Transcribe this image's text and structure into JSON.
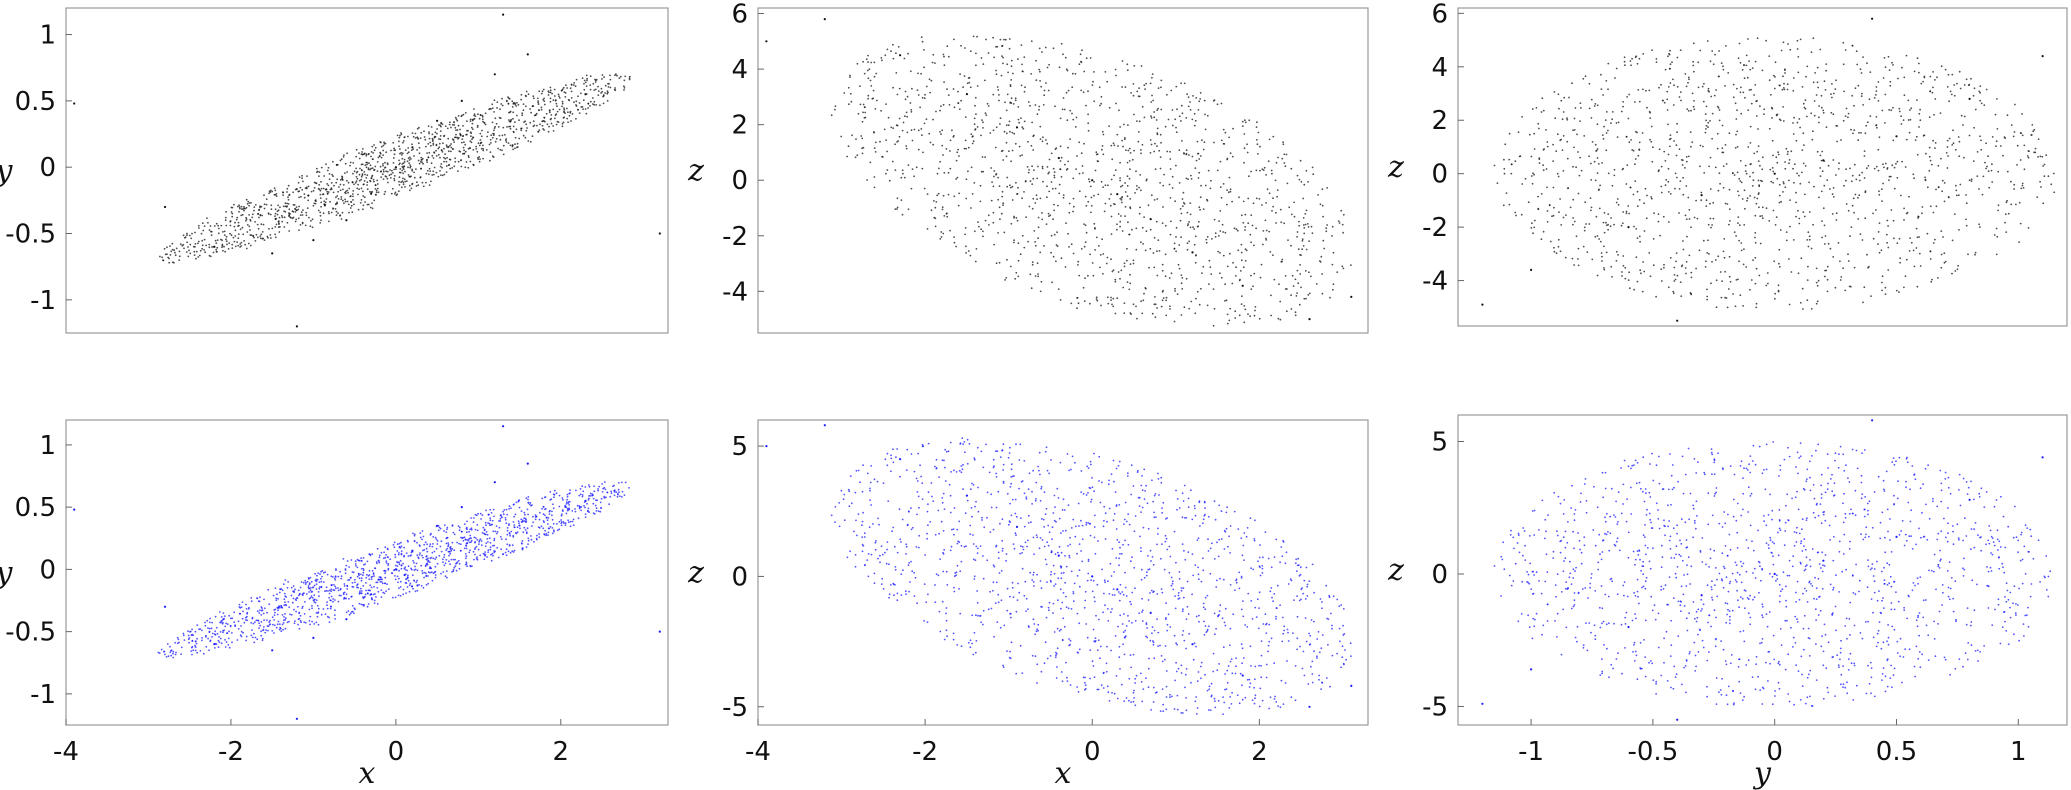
{
  "colors": {
    "top_row_points": "#111111",
    "bottom_row_points": "#1a1aff"
  },
  "chart_data": [
    {
      "type": "scatter",
      "row": 1,
      "col": 1,
      "xlabel": "",
      "ylabel": "y",
      "xlim": [
        -4.0,
        3.3
      ],
      "ylim": [
        -1.25,
        1.2
      ],
      "xticks": [],
      "yticks": [
        -1,
        -0.5,
        0,
        0.5,
        1
      ],
      "ytick_labels": [
        "-1",
        "-0.5",
        "0",
        "0.5",
        "1"
      ],
      "marker_color": "#111111",
      "series": [
        {
          "x_coord": "x",
          "y_coord": "y",
          "x": [
            0,
            0.2,
            -0.3,
            0.5,
            -0.6,
            0.8,
            -1.0,
            1.2,
            -1.5,
            1.6,
            -2.2,
            2.3,
            -3.9,
            3.2,
            -2.8,
            1.3,
            -1.2
          ],
          "y": [
            0,
            0.15,
            -0.2,
            0.35,
            -0.4,
            0.5,
            -0.55,
            0.7,
            -0.65,
            0.85,
            -0.6,
            0.55,
            0.48,
            -0.5,
            -0.3,
            1.15,
            -1.2
          ]
        }
      ]
    },
    {
      "type": "scatter",
      "row": 1,
      "col": 2,
      "xlabel": "",
      "ylabel": "z",
      "xlim": [
        -4.0,
        3.3
      ],
      "ylim": [
        -5.5,
        6.2
      ],
      "xticks": [],
      "yticks": [
        -4,
        -2,
        0,
        2,
        4,
        6
      ],
      "ytick_labels": [
        "-4",
        "-2",
        "0",
        "2",
        "4",
        "6"
      ],
      "marker_color": "#111111",
      "series": [
        {
          "x_coord": "x",
          "y_coord": "z",
          "x": [
            0,
            0.3,
            -0.4,
            0.7,
            -0.9,
            1.2,
            -1.5,
            1.8,
            -2.3,
            2.6,
            -3.2,
            3.1,
            -3.9
          ],
          "y": [
            0,
            -0.5,
            0.8,
            -1.4,
            1.9,
            -2.6,
            3.1,
            -3.8,
            4.5,
            -5.0,
            5.8,
            -4.2,
            5.0
          ]
        }
      ]
    },
    {
      "type": "scatter",
      "row": 1,
      "col": 3,
      "xlabel": "",
      "ylabel": "z",
      "xlim": [
        -1.3,
        1.2
      ],
      "ylim": [
        -5.7,
        6.2
      ],
      "xticks": [],
      "yticks": [
        -4,
        -2,
        0,
        2,
        4,
        6
      ],
      "ytick_labels": [
        "-4",
        "-2",
        "0",
        "2",
        "4",
        "6"
      ],
      "marker_color": "#111111",
      "series": [
        {
          "x_coord": "y",
          "y_coord": "z",
          "x": [
            0,
            0.2,
            -0.3,
            0.5,
            -0.6,
            0.8,
            -1.0,
            1.1,
            -1.2,
            0.4,
            -0.4
          ],
          "y": [
            0,
            0.5,
            -0.8,
            1.4,
            -2.0,
            2.8,
            -3.6,
            4.4,
            -4.9,
            5.8,
            -5.5
          ]
        }
      ]
    },
    {
      "type": "scatter",
      "row": 2,
      "col": 1,
      "xlabel": "x",
      "ylabel": "y",
      "xlim": [
        -4.0,
        3.3
      ],
      "ylim": [
        -1.25,
        1.2
      ],
      "xticks": [
        -4,
        -2,
        0,
        2
      ],
      "yticks": [
        -1,
        -0.5,
        0,
        0.5,
        1
      ],
      "xtick_labels": [
        "-4",
        "-2",
        "0",
        "2"
      ],
      "ytick_labels": [
        "-1",
        "-0.5",
        "0",
        "0.5",
        "1"
      ],
      "marker_color": "#1a1aff",
      "series": [
        {
          "x_coord": "x",
          "y_coord": "y",
          "x": [
            0,
            0.2,
            -0.3,
            0.5,
            -0.6,
            0.8,
            -1.0,
            1.2,
            -1.5,
            1.6,
            -2.2,
            2.3,
            -3.9,
            3.2,
            -2.8,
            1.3,
            -1.2
          ],
          "y": [
            0,
            0.15,
            -0.2,
            0.35,
            -0.4,
            0.5,
            -0.55,
            0.7,
            -0.65,
            0.85,
            -0.6,
            0.55,
            0.48,
            -0.5,
            -0.3,
            1.15,
            -1.2
          ]
        }
      ]
    },
    {
      "type": "scatter",
      "row": 2,
      "col": 2,
      "xlabel": "x",
      "ylabel": "z",
      "xlim": [
        -4.0,
        3.3
      ],
      "ylim": [
        -5.7,
        6.0
      ],
      "xticks": [
        -4,
        -2,
        0,
        2
      ],
      "yticks": [
        -5,
        0,
        5
      ],
      "xtick_labels": [
        "-4",
        "-2",
        "0",
        "2"
      ],
      "ytick_labels": [
        "-5",
        "0",
        "5"
      ],
      "marker_color": "#1a1aff",
      "series": [
        {
          "x_coord": "x",
          "y_coord": "z",
          "x": [
            0,
            0.3,
            -0.4,
            0.7,
            -0.9,
            1.2,
            -1.5,
            1.8,
            -2.3,
            2.6,
            -3.2,
            3.1,
            -3.9
          ],
          "y": [
            0,
            -0.5,
            0.8,
            -1.4,
            1.9,
            -2.6,
            3.1,
            -3.8,
            4.5,
            -5.0,
            5.8,
            -4.2,
            5.0
          ]
        }
      ]
    },
    {
      "type": "scatter",
      "row": 2,
      "col": 3,
      "xlabel": "y",
      "ylabel": "z",
      "xlim": [
        -1.3,
        1.2
      ],
      "ylim": [
        -5.7,
        6.0
      ],
      "xticks": [
        -1,
        -0.5,
        0,
        0.5,
        1
      ],
      "yticks": [
        -5,
        0,
        5
      ],
      "xtick_labels": [
        "-1",
        "-0.5",
        "0",
        "0.5",
        "1"
      ],
      "ytick_labels": [
        "-5",
        "0",
        "5"
      ],
      "marker_color": "#1a1aff",
      "series": [
        {
          "x_coord": "y",
          "y_coord": "z",
          "x": [
            0,
            0.2,
            -0.3,
            0.5,
            -0.6,
            0.8,
            -1.0,
            1.1,
            -1.2,
            0.4,
            -0.4
          ],
          "y": [
            0,
            0.5,
            -0.8,
            1.4,
            -2.0,
            2.8,
            -3.6,
            4.4,
            -4.9,
            5.8,
            -5.5
          ]
        }
      ]
    }
  ]
}
